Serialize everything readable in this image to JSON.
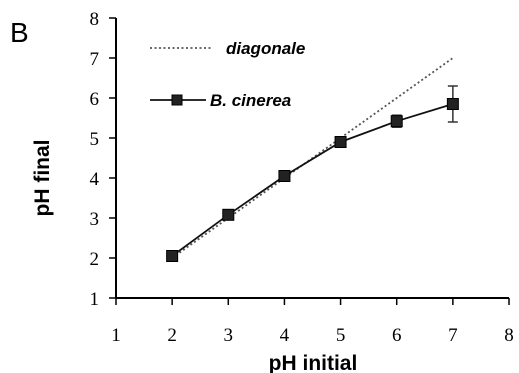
{
  "panel_label": "B",
  "chart_data": {
    "type": "line",
    "xlabel": "pH initial",
    "ylabel": "pH final",
    "xlim": [
      1,
      8
    ],
    "ylim": [
      1,
      8
    ],
    "x_ticks": [
      1,
      2,
      3,
      4,
      5,
      6,
      7,
      8
    ],
    "y_ticks": [
      1,
      2,
      3,
      4,
      5,
      6,
      7,
      8
    ],
    "grid": false,
    "legend_position": "top-left",
    "series": [
      {
        "name": "diagonale",
        "style": "dotted",
        "color": "#555555",
        "x": [
          2,
          3,
          4,
          5,
          6,
          7
        ],
        "y": [
          2,
          3,
          4,
          5,
          6,
          7
        ]
      },
      {
        "name": "B. cinerea",
        "style": "solid-square-markers",
        "color": "#111111",
        "x": [
          2,
          3,
          4,
          5,
          6,
          7
        ],
        "y": [
          2.05,
          3.08,
          4.05,
          4.9,
          5.42,
          5.85
        ],
        "error": [
          0.05,
          0.05,
          0.05,
          0.05,
          0.15,
          0.45
        ]
      }
    ]
  }
}
